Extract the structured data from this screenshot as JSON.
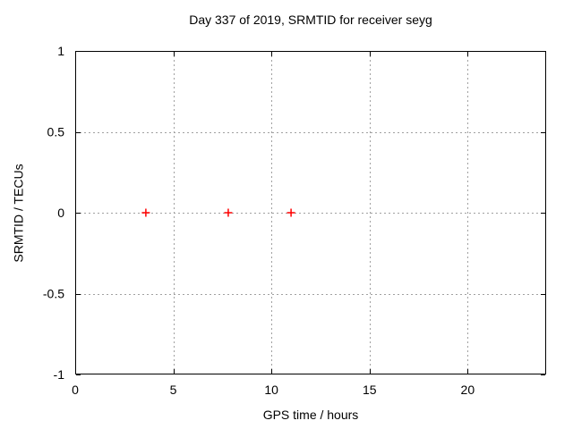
{
  "chart_data": {
    "type": "scatter",
    "title": "Day 337 of 2019, SRMTID for receiver seyg",
    "xlabel": "GPS time / hours",
    "ylabel": "SRMTID / TECUs",
    "xlim": [
      0,
      24
    ],
    "ylim": [
      -1,
      1
    ],
    "xticks": [
      0,
      5,
      10,
      15,
      20
    ],
    "yticks": [
      -1,
      -0.5,
      0,
      0.5,
      1
    ],
    "grid": true,
    "grid_style": "dashed",
    "legend": "none",
    "series": [
      {
        "name": "SRMTID",
        "marker": "plus",
        "color": "#ff0000",
        "points": [
          {
            "x": 3.6,
            "y": 0
          },
          {
            "x": 7.8,
            "y": 0
          },
          {
            "x": 11.0,
            "y": 0
          }
        ]
      }
    ]
  },
  "colors": {
    "background": "#ffffff",
    "border": "#000000",
    "grid": "#a0a0a0",
    "text": "#000000",
    "marker": "#ff0000"
  }
}
